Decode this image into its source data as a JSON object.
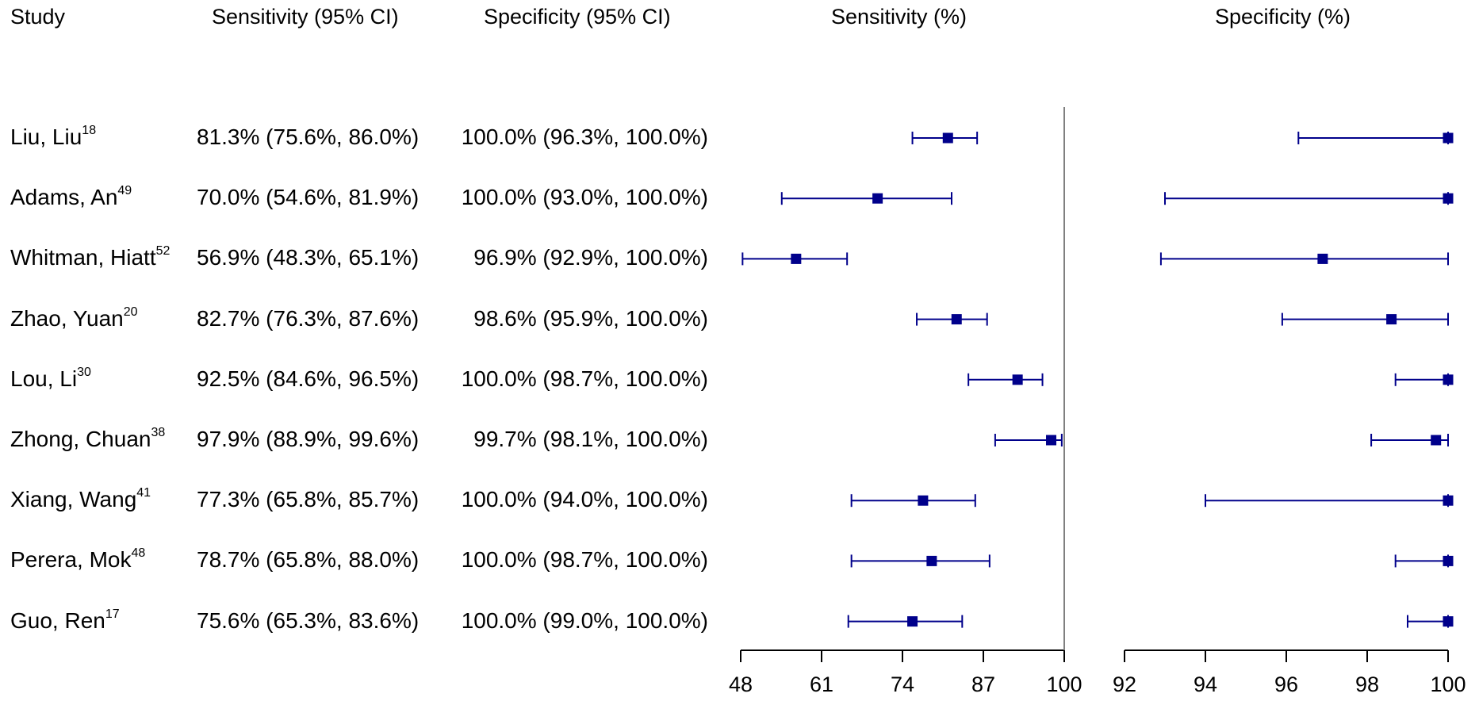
{
  "headers": {
    "study": "Study",
    "sens_ci": "Sensitivity (95% CI)",
    "spec_ci": "Specificity (95% CI)",
    "sens_plot": "Sensitivity (%)",
    "spec_plot": "Specificity (%)"
  },
  "colors": {
    "marker": "#00008B",
    "axis": "#000000",
    "refline": "#808080"
  },
  "chart_data": [
    {
      "type": "forest",
      "title": "Sensitivity (%)",
      "xlim": [
        48,
        100
      ],
      "ticks": [
        "48",
        "61",
        "74",
        "87",
        "100"
      ],
      "reference_line": 100,
      "categories": [
        "Liu, Liu",
        "Adams, An",
        "Whitman, Hiatt",
        "Zhao, Yuan",
        "Lou, Li",
        "Zhong, Chuan",
        "Xiang, Wang",
        "Perera, Mok",
        "Guo, Ren"
      ],
      "estimate": [
        81.3,
        70.0,
        56.9,
        82.7,
        92.5,
        97.9,
        77.3,
        78.7,
        75.6
      ],
      "lower": [
        75.6,
        54.6,
        48.3,
        76.3,
        84.6,
        88.9,
        65.8,
        65.8,
        65.3
      ],
      "upper": [
        86.0,
        81.9,
        65.1,
        87.6,
        96.5,
        99.6,
        85.7,
        88.0,
        83.6
      ]
    },
    {
      "type": "forest",
      "title": "Specificity (%)",
      "xlim": [
        92,
        100
      ],
      "ticks": [
        "92",
        "94",
        "96",
        "98",
        "100"
      ],
      "categories": [
        "Liu, Liu",
        "Adams, An",
        "Whitman, Hiatt",
        "Zhao, Yuan",
        "Lou, Li",
        "Zhong, Chuan",
        "Xiang, Wang",
        "Perera, Mok",
        "Guo, Ren"
      ],
      "estimate": [
        100.0,
        100.0,
        96.9,
        98.6,
        100.0,
        99.7,
        100.0,
        100.0,
        100.0
      ],
      "lower": [
        96.3,
        93.0,
        92.9,
        95.9,
        98.7,
        98.1,
        94.0,
        98.7,
        99.0
      ],
      "upper": [
        100.0,
        100.0,
        100.0,
        100.0,
        100.0,
        100.0,
        100.0,
        100.0,
        100.0
      ]
    }
  ],
  "rows": [
    {
      "name": "Liu, Liu",
      "ref": "18",
      "sens": "81.3% (75.6%, 86.0%)",
      "spec": "100.0% (96.3%, 100.0%)"
    },
    {
      "name": "Adams, An",
      "ref": "49",
      "sens": "70.0% (54.6%, 81.9%)",
      "spec": "100.0% (93.0%, 100.0%)"
    },
    {
      "name": "Whitman, Hiatt",
      "ref": "52",
      "sens": "56.9% (48.3%, 65.1%)",
      "spec": "96.9% (92.9%, 100.0%)"
    },
    {
      "name": "Zhao, Yuan",
      "ref": "20",
      "sens": "82.7% (76.3%, 87.6%)",
      "spec": "98.6% (95.9%, 100.0%)"
    },
    {
      "name": "Lou, Li",
      "ref": "30",
      "sens": "92.5% (84.6%, 96.5%)",
      "spec": "100.0% (98.7%, 100.0%)"
    },
    {
      "name": "Zhong, Chuan",
      "ref": "38",
      "sens": "97.9% (88.9%, 99.6%)",
      "spec": "99.7% (98.1%, 100.0%)"
    },
    {
      "name": "Xiang, Wang",
      "ref": "41",
      "sens": "77.3% (65.8%, 85.7%)",
      "spec": "100.0% (94.0%, 100.0%)"
    },
    {
      "name": "Perera, Mok",
      "ref": "48",
      "sens": "78.7% (65.8%, 88.0%)",
      "spec": "100.0% (98.7%, 100.0%)"
    },
    {
      "name": "Guo, Ren",
      "ref": "17",
      "sens": "75.6% (65.3%, 83.6%)",
      "spec": "100.0% (99.0%, 100.0%)"
    }
  ]
}
